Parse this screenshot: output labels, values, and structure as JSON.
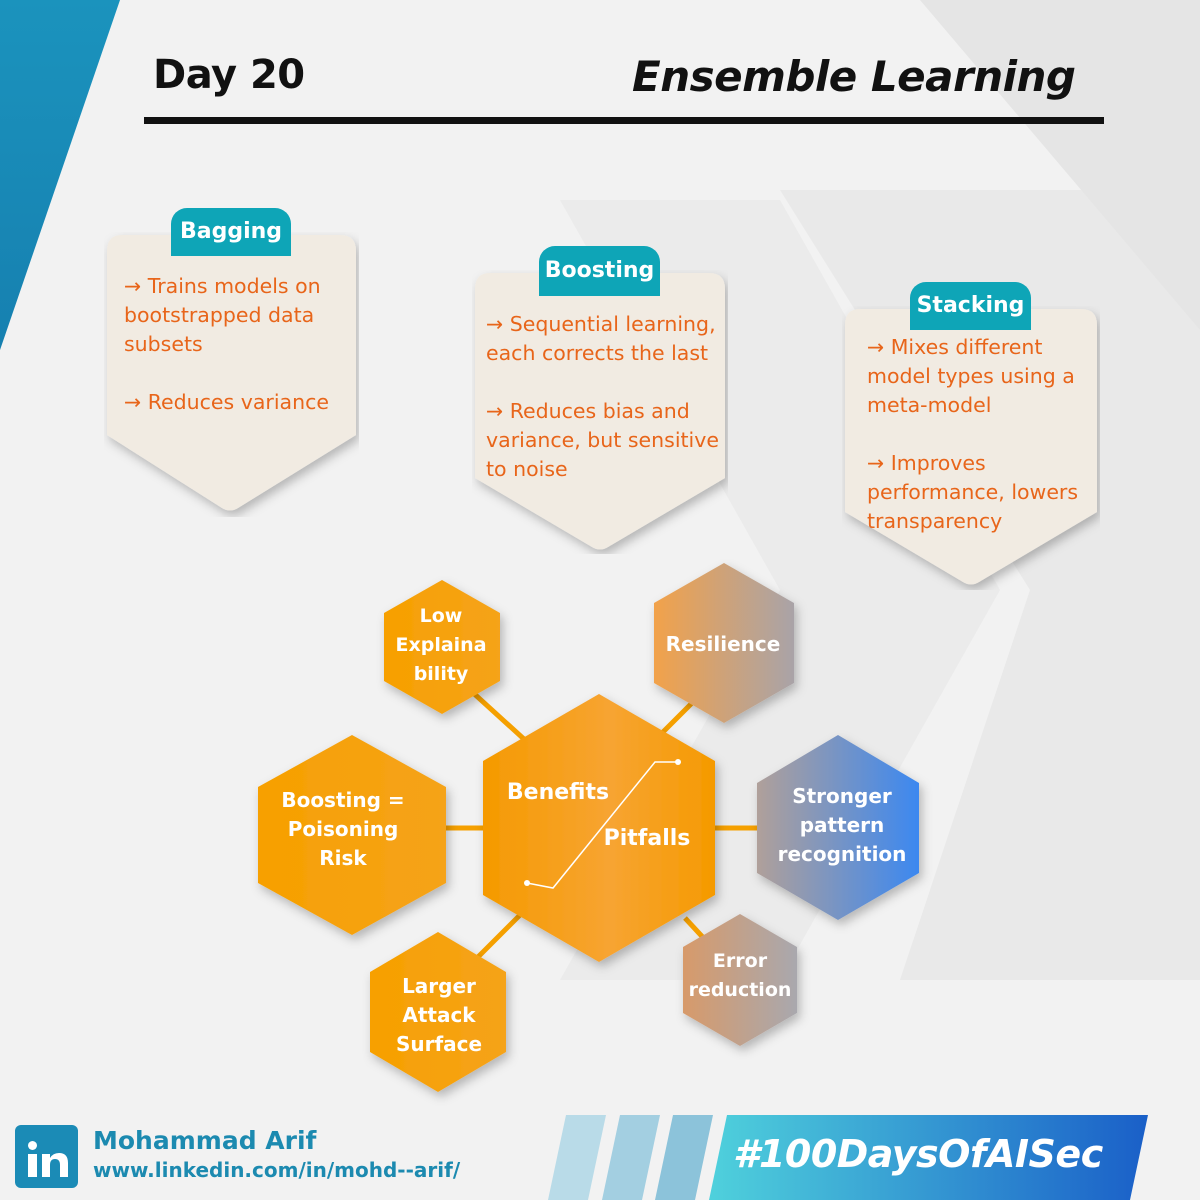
{
  "header": {
    "day": "Day 20",
    "title": "Ensemble Learning"
  },
  "cards": [
    {
      "tag": "Bagging",
      "points": [
        "→ Trains models on bootstrapped data subsets",
        "→ Reduces variance"
      ]
    },
    {
      "tag": "Boosting",
      "points": [
        "→ Sequential learning, each corrects the last",
        "→ Reduces bias and variance, but sensitive to noise"
      ]
    },
    {
      "tag": "Stacking",
      "points": [
        "→ Mixes different model types using a meta-model",
        "→ Improves performance, lowers transparency"
      ]
    }
  ],
  "hexagons": {
    "center": {
      "benefits": "Benefits",
      "pitfalls": "Pitfalls"
    },
    "pitfalls": [
      {
        "label": "Low Explaina bility"
      },
      {
        "label": "Boosting = Poisoning Risk"
      },
      {
        "label": "Larger Attack Surface"
      }
    ],
    "benefits": [
      {
        "label": "Resilience"
      },
      {
        "label": "Stronger pattern recognition"
      },
      {
        "label": "Error reduction"
      }
    ]
  },
  "footer": {
    "name": "Mohammad Arif",
    "url": "www.linkedin.com/in/mohd--arif/",
    "hashtag": "#100DaysOfAISec",
    "linkedin_icon": "linkedin-icon"
  },
  "colors": {
    "accent_teal": "#0ea5b7",
    "text_orange": "#e8651a",
    "hex_orange": "#f5a000",
    "hex_blue": "#4a8ee8",
    "footer_blue": "#1c8ab0"
  }
}
